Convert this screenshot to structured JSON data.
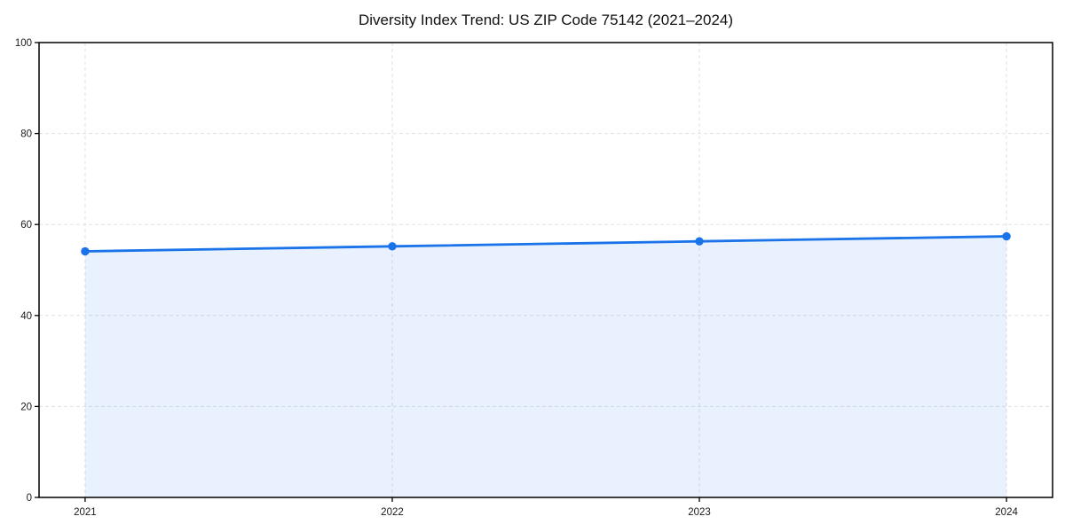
{
  "chart_data": {
    "type": "line",
    "title": "Diversity Index Trend: US ZIP Code 75142 (2021–2024)",
    "x": [
      2021,
      2022,
      2023,
      2024
    ],
    "categories": [
      "2021",
      "2022",
      "2023",
      "2024"
    ],
    "series": [
      {
        "name": "Diversity Index",
        "values": [
          54.1,
          55.2,
          56.3,
          57.4
        ]
      }
    ],
    "xlabel": "",
    "ylabel": "",
    "ylim": [
      0,
      100
    ],
    "yticks": [
      0,
      20,
      40,
      60,
      80,
      100
    ],
    "grid": true,
    "grid_style": "dashed",
    "legend_position": "none",
    "area_fill": true,
    "marker": "circle",
    "colors": {
      "line": "#1a73e8",
      "marker": "#1a73e8",
      "fill": "rgba(26,115,232,0.10)",
      "grid": "#e1e1e1",
      "axis": "#000000",
      "tick_text": "#1a1a1a",
      "title_text": "#111111",
      "background": "#ffffff"
    }
  }
}
